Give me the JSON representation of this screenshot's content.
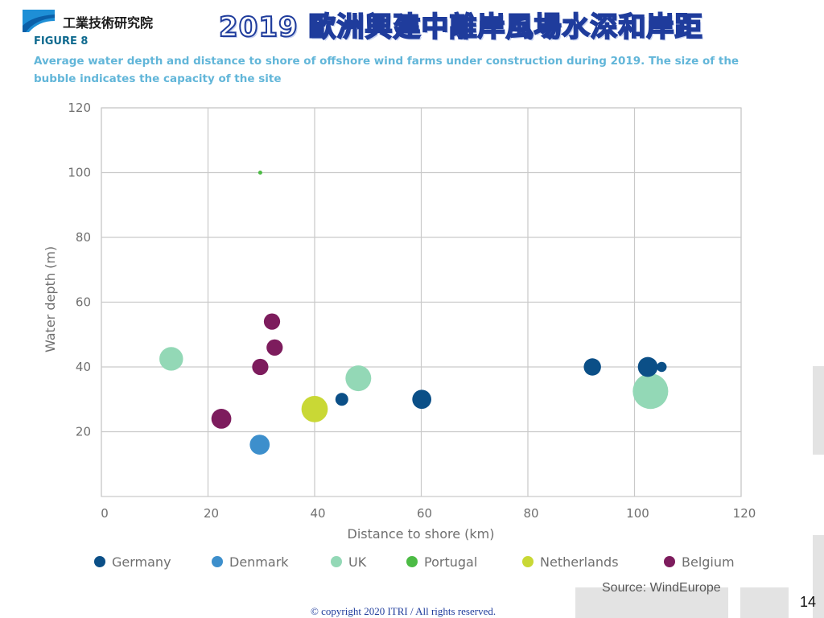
{
  "header": {
    "org_name": "工業技術研究院",
    "title": "2019 歐洲興建中離岸風場水深和岸距"
  },
  "figure": {
    "label": "FIGURE 8",
    "caption": "Average water depth and distance to shore of offshore wind farms under construction during 2019. The size of the bubble indicates the capacity of the site"
  },
  "chart_data": {
    "type": "scatter",
    "xlabel": "Distance to shore (km)",
    "ylabel": "Water depth (m)",
    "xlim": [
      0,
      120
    ],
    "ylim": [
      0,
      120
    ],
    "xticks": [
      0,
      20,
      40,
      60,
      80,
      100,
      120
    ],
    "yticks": [
      20,
      40,
      60,
      80,
      100,
      120
    ],
    "grid": true,
    "legend_position": "bottom",
    "bubble_size": "capacity of the site",
    "series": [
      {
        "name": "Germany",
        "color": "#0b4f87",
        "points": [
          {
            "x": 45.1,
            "y": 30,
            "size": 0.5
          },
          {
            "x": 60.1,
            "y": 30,
            "size": 1.1
          },
          {
            "x": 92.1,
            "y": 40,
            "size": 0.9
          },
          {
            "x": 102.5,
            "y": 40,
            "size": 1.2
          },
          {
            "x": 105.1,
            "y": 40,
            "size": 0.3
          }
        ]
      },
      {
        "name": "Denmark",
        "color": "#3d8fcc",
        "points": [
          {
            "x": 29.7,
            "y": 16,
            "size": 1.2
          }
        ]
      },
      {
        "name": "UK",
        "color": "#93d8b6",
        "points": [
          {
            "x": 13.1,
            "y": 42.5,
            "size": 1.7
          },
          {
            "x": 48.2,
            "y": 36.5,
            "size": 2.0
          },
          {
            "x": 103.0,
            "y": 32.5,
            "size": 3.8
          }
        ]
      },
      {
        "name": "Portugal",
        "color": "#4cbb45",
        "points": [
          {
            "x": 29.8,
            "y": 100,
            "size": 0.05
          }
        ]
      },
      {
        "name": "Netherlands",
        "color": "#c9d835",
        "points": [
          {
            "x": 40.0,
            "y": 27,
            "size": 2.1
          }
        ]
      },
      {
        "name": "Belgium",
        "color": "#7d1c5d",
        "points": [
          {
            "x": 22.5,
            "y": 24,
            "size": 1.2
          },
          {
            "x": 29.8,
            "y": 40,
            "size": 0.8
          },
          {
            "x": 32.0,
            "y": 54,
            "size": 0.8
          },
          {
            "x": 32.5,
            "y": 46,
            "size": 0.8
          }
        ]
      }
    ]
  },
  "footer": {
    "source": "Source: WindEurope",
    "page_number": "14",
    "copyright": "© copyright 2020 ITRI / All rights reserved."
  }
}
